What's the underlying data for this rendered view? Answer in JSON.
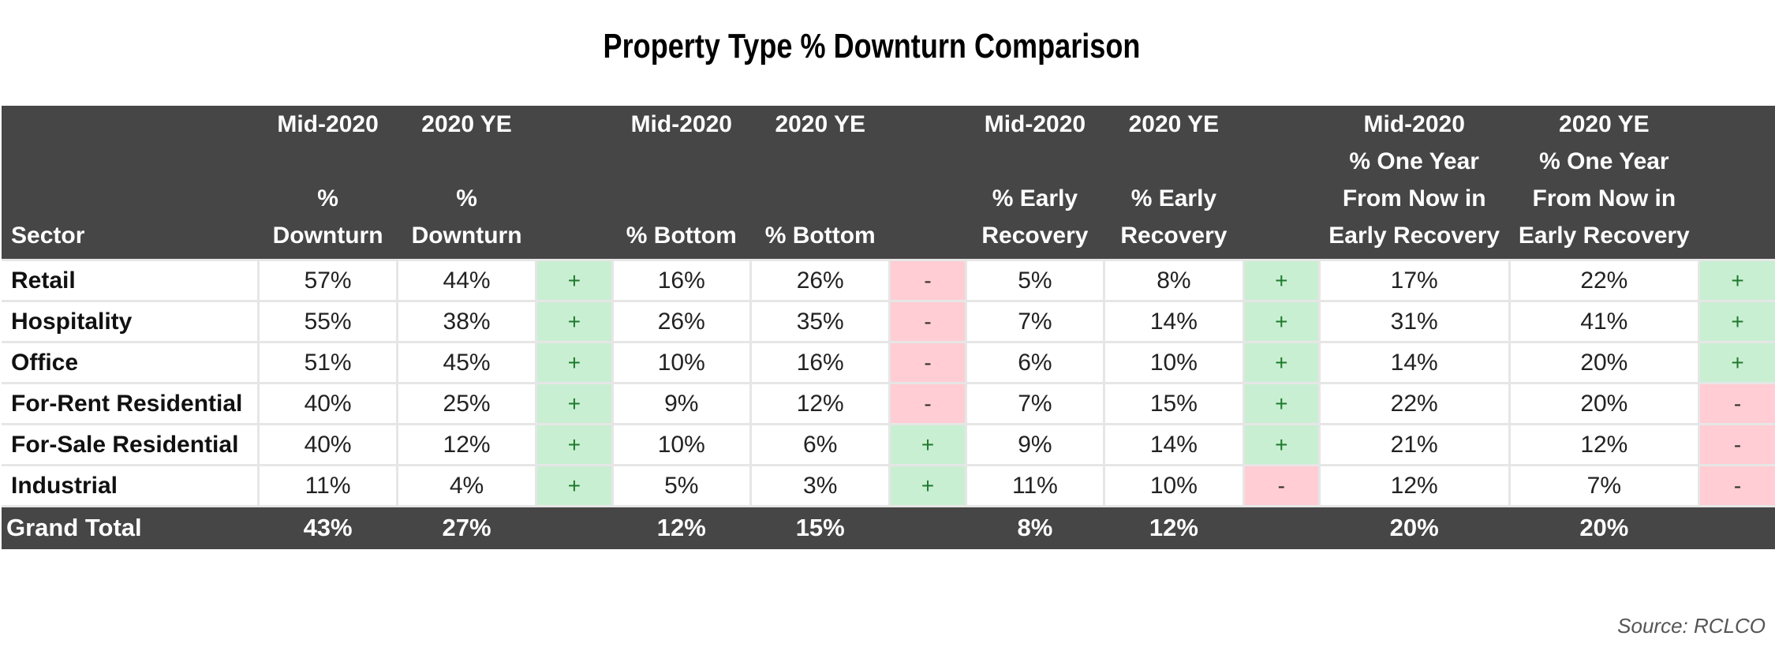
{
  "chart_data": {
    "type": "table",
    "title": "Property Type % Downturn Comparison",
    "header_row_label": "Sector",
    "column_groups": [
      {
        "columns": [
          {
            "top": "Mid-2020",
            "sub": "% Downturn"
          },
          {
            "top": "2020 YE",
            "sub": "% Downturn"
          }
        ]
      },
      {
        "columns": [
          {
            "top": "Mid-2020",
            "sub": "% Bottom"
          },
          {
            "top": "2020 YE",
            "sub": "% Bottom"
          }
        ]
      },
      {
        "columns": [
          {
            "top": "Mid-2020",
            "sub": "% Early Recovery"
          },
          {
            "top": "2020 YE",
            "sub": "% Early Recovery"
          }
        ]
      },
      {
        "columns": [
          {
            "top": "Mid-2020",
            "sub": "% One Year From Now in Early Recovery"
          },
          {
            "top": "2020 YE",
            "sub": "% One Year From Now in Early Recovery"
          }
        ]
      }
    ],
    "rows": [
      {
        "sector": "Retail",
        "values": [
          57,
          44,
          16,
          26,
          5,
          8,
          17,
          22
        ],
        "display": [
          "57%",
          "44%",
          "16%",
          "26%",
          "5%",
          "8%",
          "17%",
          "22%"
        ],
        "indicators": [
          "+",
          "-",
          "+",
          "+"
        ]
      },
      {
        "sector": "Hospitality",
        "values": [
          55,
          38,
          26,
          35,
          7,
          14,
          31,
          41
        ],
        "display": [
          "55%",
          "38%",
          "26%",
          "35%",
          "7%",
          "14%",
          "31%",
          "41%"
        ],
        "indicators": [
          "+",
          "-",
          "+",
          "+"
        ]
      },
      {
        "sector": "Office",
        "values": [
          51,
          45,
          10,
          16,
          6,
          10,
          14,
          20
        ],
        "display": [
          "51%",
          "45%",
          "10%",
          "16%",
          "6%",
          "10%",
          "14%",
          "20%"
        ],
        "indicators": [
          "+",
          "-",
          "+",
          "+"
        ]
      },
      {
        "sector": "For-Rent Residential",
        "values": [
          40,
          25,
          9,
          12,
          7,
          15,
          22,
          20
        ],
        "display": [
          "40%",
          "25%",
          "9%",
          "12%",
          "7%",
          "15%",
          "22%",
          "20%"
        ],
        "indicators": [
          "+",
          "-",
          "+",
          "-"
        ]
      },
      {
        "sector": "For-Sale Residential",
        "values": [
          40,
          12,
          10,
          6,
          9,
          14,
          21,
          12
        ],
        "display": [
          "40%",
          "12%",
          "10%",
          "6%",
          "9%",
          "14%",
          "21%",
          "12%"
        ],
        "indicators": [
          "+",
          "+",
          "+",
          "-"
        ]
      },
      {
        "sector": "Industrial",
        "values": [
          11,
          4,
          5,
          3,
          11,
          10,
          12,
          7
        ],
        "display": [
          "11%",
          "4%",
          "5%",
          "3%",
          "11%",
          "10%",
          "12%",
          "7%"
        ],
        "indicators": [
          "+",
          "+",
          "-",
          "-"
        ]
      }
    ],
    "total": {
      "sector": "Grand Total",
      "values": [
        43,
        27,
        12,
        15,
        8,
        12,
        20,
        20
      ],
      "display": [
        "43%",
        "27%",
        "12%",
        "15%",
        "8%",
        "12%",
        "20%",
        "20%"
      ]
    },
    "indicator_colors": {
      "+": "#c9efd2",
      "-": "#ffcdd3"
    },
    "header_color": "#464646",
    "source": "Source: RCLCO"
  }
}
